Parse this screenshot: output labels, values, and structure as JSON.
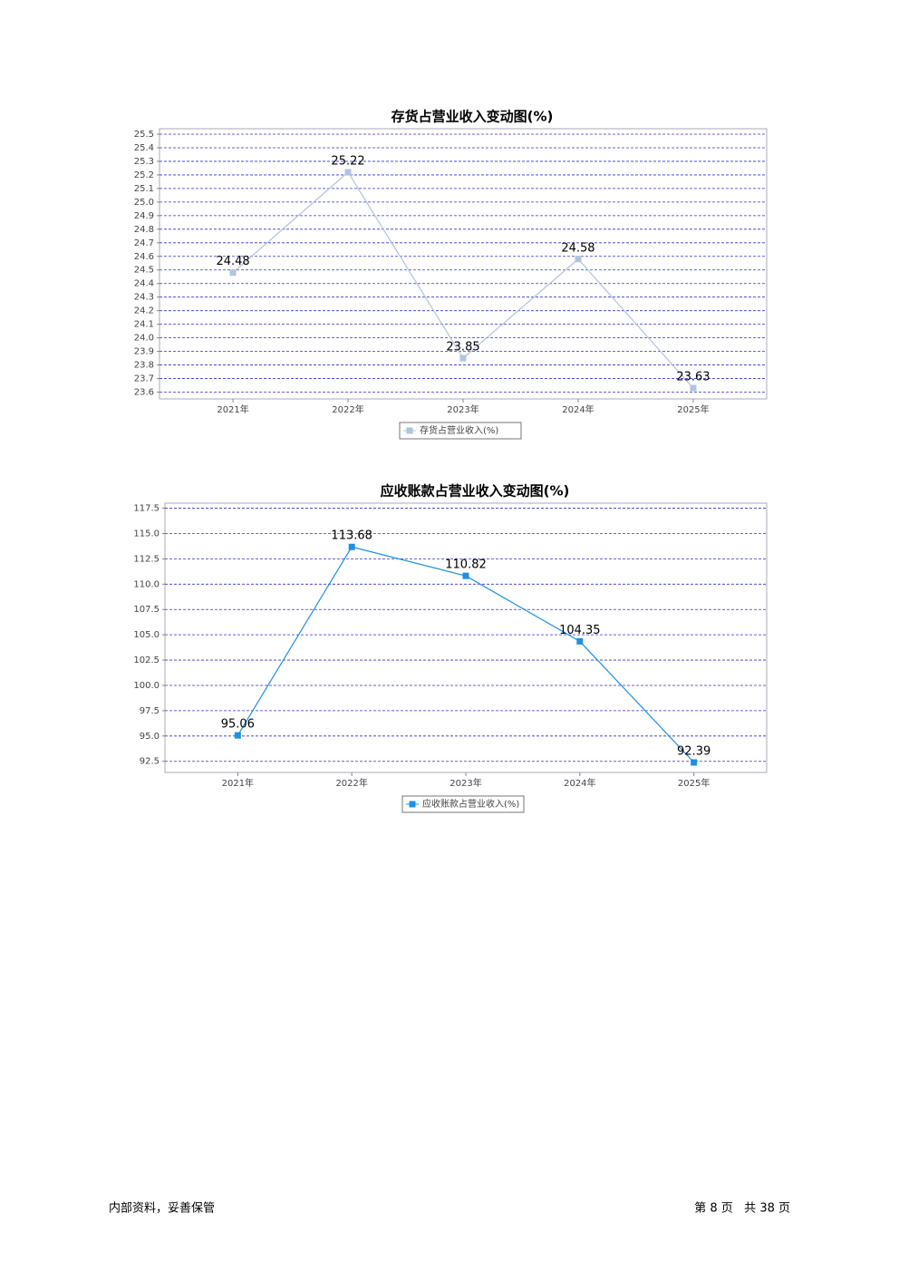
{
  "chart_data": [
    {
      "type": "line",
      "title": "存货占营业收入变动图(%)",
      "categories": [
        "2021年",
        "2022年",
        "2023年",
        "2024年",
        "2025年"
      ],
      "series": [
        {
          "name": "存货占营业收入(%)",
          "color": "#b0c4de",
          "values": [
            24.48,
            25.22,
            23.85,
            24.58,
            23.63
          ]
        }
      ],
      "ylim": [
        23.55,
        25.54
      ],
      "yticks": [
        23.6,
        23.7,
        23.8,
        23.9,
        {
          "value": 24,
          "label": "24.0"
        },
        24.1,
        24.2,
        24.3,
        24.4,
        24.5,
        24.6,
        24.7,
        24.8,
        24.9,
        {
          "value": 25,
          "label": "25.0"
        },
        25.1,
        25.2,
        25.3,
        25.4,
        25.5
      ],
      "grid": true
    },
    {
      "type": "line",
      "title": "应收账款占营业收入变动图(%)",
      "categories": [
        "2021年",
        "2022年",
        "2023年",
        "2024年",
        "2025年"
      ],
      "series": [
        {
          "name": "应收账款占营业收入(%)",
          "color": "#1e90e6",
          "values": [
            95.06,
            113.68,
            110.82,
            104.35,
            92.39
          ]
        }
      ],
      "ylim": [
        91.4,
        118
      ],
      "yticks": [
        92.5,
        {
          "value": 95,
          "label": "95.0"
        },
        97.5,
        {
          "value": 100,
          "label": "100.0"
        },
        102.5,
        {
          "value": 105,
          "label": "105.0"
        },
        107.5,
        {
          "value": 110,
          "label": "110.0"
        },
        112.5,
        {
          "value": 115,
          "label": "115.0"
        },
        117.5
      ],
      "grid": true
    }
  ],
  "footer": {
    "left": "内部资料，妥善保管",
    "right": "第 8 页   共 38 页"
  }
}
